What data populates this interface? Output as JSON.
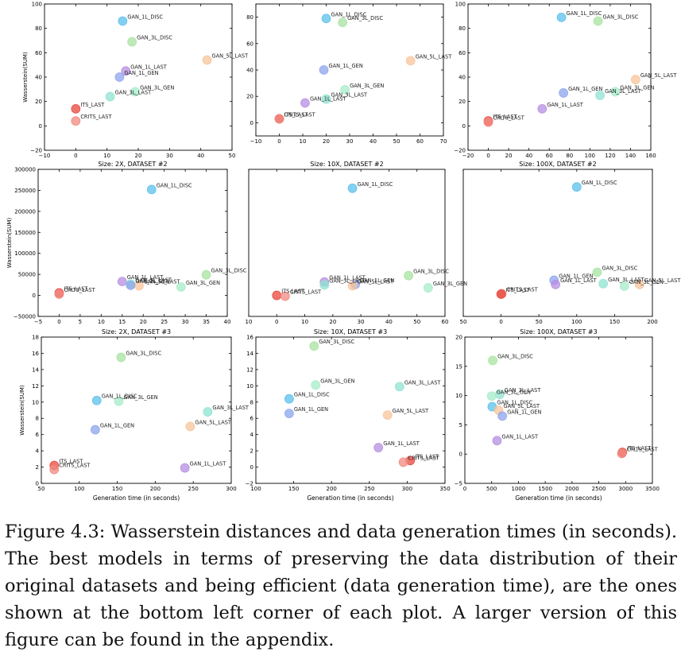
{
  "caption": "Figure 4.3: Wasserstein distances and data generation times (in seconds). The best models in terms of preserving the data distribution of their original datasets and being efficient (data generation time), are the ones shown at the bottom left corner of each plot. A larger version of this figure can be found in the appendix.",
  "colors": {
    "ITS_LAST": "#e8453c",
    "CRITS_LAST": "#f08a80",
    "GAN_1L_DISC": "#5bc0eb",
    "GAN_3L_DISC": "#a7e3a0",
    "GAN_1L_LAST": "#b58ee0",
    "GAN_3L_LAST": "#8fe3d1",
    "GAN_1L_GEN": "#8ea4ee",
    "GAN_3L_GEN": "#a5ecc9",
    "GAN_5L_LAST": "#f7c49a",
    "CRITS LAST": "#f08a80",
    "ITS LAST": "#e8453c"
  },
  "chart_data": [
    {
      "type": "scatter",
      "title": "",
      "xlabel": "",
      "ylabel": "Wasserstein(SUM)",
      "xlim": [
        -10,
        50
      ],
      "ylim": [
        -20,
        100
      ],
      "xticks": [
        "−10",
        "0",
        "10",
        "20",
        "30",
        "40",
        "50"
      ],
      "yticks": [
        "−20",
        "0",
        "20",
        "40",
        "60",
        "80",
        "100"
      ],
      "points": [
        {
          "label": "GAN_1L_DISC",
          "x": 15,
          "y": 86
        },
        {
          "label": "GAN_3L_DISC",
          "x": 18,
          "y": 69
        },
        {
          "label": "GAN_5L_LAST",
          "x": 42,
          "y": 54
        },
        {
          "label": "GAN_1L_LAST",
          "x": 16,
          "y": 45
        },
        {
          "label": "GAN_1L_GEN",
          "x": 14,
          "y": 40
        },
        {
          "label": "GAN_3L_GEN",
          "x": 19,
          "y": 28
        },
        {
          "label": "GAN_3L_LAST",
          "x": 11,
          "y": 24
        },
        {
          "label": "ITS_LAST",
          "x": 0,
          "y": 14
        },
        {
          "label": "CRITS_LAST",
          "x": 0,
          "y": 4
        }
      ]
    },
    {
      "type": "scatter",
      "title": "",
      "xlabel": "",
      "ylabel": "",
      "xlim": [
        -10,
        70
      ],
      "ylim": [
        -10,
        90
      ],
      "xticks": [
        "−10",
        "0",
        "10",
        "20",
        "30",
        "40",
        "50",
        "60",
        "70"
      ],
      "yticks": [
        "0",
        "20",
        "40",
        "60",
        "80"
      ],
      "points": [
        {
          "label": "GAN_1L_DISC",
          "x": 20,
          "y": 79
        },
        {
          "label": "GAN_3L_DISC",
          "x": 27,
          "y": 76
        },
        {
          "label": "GAN_5L_LAST",
          "x": 56,
          "y": 47
        },
        {
          "label": "GAN_1L_GEN",
          "x": 19,
          "y": 40
        },
        {
          "label": "GAN_3L_GEN",
          "x": 28,
          "y": 25
        },
        {
          "label": "GAN_3L_LAST",
          "x": 20,
          "y": 18
        },
        {
          "label": "GAN_1L_LAST",
          "x": 11,
          "y": 15
        },
        {
          "label": "ITS_LAST",
          "x": 0,
          "y": 3
        },
        {
          "label": "CRITS_LAST",
          "x": 0,
          "y": 3
        }
      ]
    },
    {
      "type": "scatter",
      "title": "",
      "xlabel": "",
      "ylabel": "",
      "xlim": [
        -20,
        160
      ],
      "ylim": [
        -20,
        100
      ],
      "xticks": [
        "−20",
        "0",
        "20",
        "40",
        "60",
        "80",
        "100",
        "120",
        "140",
        "160"
      ],
      "yticks": [
        "−20",
        "0",
        "20",
        "40",
        "60",
        "80",
        "100"
      ],
      "points": [
        {
          "label": "GAN_1L_DISC",
          "x": 72,
          "y": 89
        },
        {
          "label": "GAN_3L_DISC",
          "x": 108,
          "y": 86
        },
        {
          "label": "GAN_5L_LAST",
          "x": 145,
          "y": 38
        },
        {
          "label": "GAN_1L_GEN",
          "x": 74,
          "y": 27
        },
        {
          "label": "GAN_3L_GEN",
          "x": 125,
          "y": 28
        },
        {
          "label": "GAN_3L_LAST",
          "x": 110,
          "y": 25
        },
        {
          "label": "GAN_1L_LAST",
          "x": 53,
          "y": 14
        },
        {
          "label": "ITS_LAST",
          "x": 0,
          "y": 4
        },
        {
          "label": "CRITS_LAST",
          "x": 0,
          "y": 3
        }
      ]
    },
    {
      "type": "scatter",
      "title": "Size: 2X, DATASET #2",
      "xlabel": "",
      "ylabel": "Wasserstein(SUM)",
      "xlim": [
        -5,
        40
      ],
      "ylim": [
        -50000,
        300000
      ],
      "xticks": [
        "−5",
        "0",
        "5",
        "10",
        "15",
        "20",
        "25",
        "30",
        "35",
        "40"
      ],
      "yticks": [
        "−50000",
        "0",
        "50000",
        "100000",
        "150000",
        "200000",
        "250000",
        "300000"
      ],
      "points": [
        {
          "label": "GAN_1L_DISC",
          "x": 22,
          "y": 252000
        },
        {
          "label": "GAN_3L_DISC",
          "x": 35,
          "y": 49000
        },
        {
          "label": "GAN_1L_LAST",
          "x": 15,
          "y": 33000
        },
        {
          "label": "GAN_3L_LAST",
          "x": 17,
          "y": 27000
        },
        {
          "label": "GAN_5L_LAST",
          "x": 19,
          "y": 23000
        },
        {
          "label": "GAN_1L_GEN",
          "x": 17,
          "y": 24000
        },
        {
          "label": "GAN_3L_GEN",
          "x": 29,
          "y": 20000
        },
        {
          "label": "ITS_LAST",
          "x": 0,
          "y": 6000
        },
        {
          "label": "CRITS_LAST",
          "x": 0,
          "y": 3000
        }
      ]
    },
    {
      "type": "scatter",
      "title": "Size: 10X, DATASET #2",
      "xlabel": "",
      "ylabel": "",
      "xlim": [
        -10,
        60
      ],
      "ylim": [
        -50000,
        300000
      ],
      "xticks": [
        "10",
        "0",
        "10",
        "20",
        "30",
        "40",
        "50",
        "60"
      ],
      "yticks": [],
      "points": [
        {
          "label": "GAN_1L_DISC",
          "x": 27,
          "y": 255000
        },
        {
          "label": "GAN_3L_DISC",
          "x": 47,
          "y": 47000
        },
        {
          "label": "GAN_1L_LAST",
          "x": 17,
          "y": 32000
        },
        {
          "label": "GAN_1L_GEN",
          "x": 28,
          "y": 26000
        },
        {
          "label": "GAN_3L_LAST",
          "x": 17,
          "y": 25000
        },
        {
          "label": "GAN_5L_LAST",
          "x": 27,
          "y": 23000
        },
        {
          "label": "GAN_3L_GEN",
          "x": 54,
          "y": 18000
        },
        {
          "label": "ITS LAST",
          "x": 0,
          "y": 0
        },
        {
          "label": "CRITS_LAST",
          "x": 3,
          "y": -2000
        }
      ]
    },
    {
      "type": "scatter",
      "title": "Size: 100X, DATASET #2",
      "xlabel": "",
      "ylabel": "",
      "xlim": [
        -50,
        200
      ],
      "ylim": [
        -50000,
        300000
      ],
      "xticks": [
        "50",
        "0",
        "50",
        "100",
        "150",
        "200"
      ],
      "yticks": [],
      "points": [
        {
          "label": "GAN_1L_DISC",
          "x": 100,
          "y": 258000
        },
        {
          "label": "GAN_3L_DISC",
          "x": 127,
          "y": 55000
        },
        {
          "label": "GAN_1L_GEN",
          "x": 70,
          "y": 36000
        },
        {
          "label": "GAN_3L_LAST",
          "x": 135,
          "y": 28000
        },
        {
          "label": "GAN_1L_LAST",
          "x": 72,
          "y": 26000
        },
        {
          "label": "GAN_5L_LAST",
          "x": 183,
          "y": 26000
        },
        {
          "label": "GAN_3L_GEN",
          "x": 163,
          "y": 22000
        },
        {
          "label": "CRITS_LAST",
          "x": 1,
          "y": 4000
        },
        {
          "label": "ITS_LAST",
          "x": 0,
          "y": 3000
        }
      ]
    },
    {
      "type": "scatter",
      "title": "Size: 2X, DATASET #3",
      "xlabel": "Generation time (in seconds)",
      "ylabel": "Wasserstein(SUM)",
      "xlim": [
        50,
        300
      ],
      "ylim": [
        0,
        18
      ],
      "xticks": [
        "50",
        "100",
        "150",
        "200",
        "250",
        "300"
      ],
      "yticks": [
        "0",
        "2",
        "4",
        "6",
        "8",
        "10",
        "12",
        "14",
        "16",
        "18"
      ],
      "points": [
        {
          "label": "GAN_3L_DISC",
          "x": 155,
          "y": 15.5
        },
        {
          "label": "GAN_1L_DISC",
          "x": 123,
          "y": 10.2
        },
        {
          "label": "GAN_3L_GEN",
          "x": 152,
          "y": 10.1
        },
        {
          "label": "GAN_3L_LAST",
          "x": 269,
          "y": 8.8
        },
        {
          "label": "GAN_5L_LAST",
          "x": 246,
          "y": 7.0
        },
        {
          "label": "GAN_1L_GEN",
          "x": 121,
          "y": 6.6
        },
        {
          "label": "GAN_1L_LAST",
          "x": 239,
          "y": 1.9
        },
        {
          "label": "ITS_LAST",
          "x": 67,
          "y": 2.2
        },
        {
          "label": "CRITS_LAST",
          "x": 67,
          "y": 1.7
        }
      ]
    },
    {
      "type": "scatter",
      "title": "Size: 10X, DATASET #3",
      "xlabel": "Generation time (in seconds)",
      "ylabel": "",
      "xlim": [
        100,
        350
      ],
      "ylim": [
        -2,
        16
      ],
      "xticks": [
        "100",
        "150",
        "200",
        "250",
        "300",
        "350"
      ],
      "yticks": [
        "−2",
        "0",
        "2",
        "4",
        "6",
        "8",
        "10",
        "12",
        "14",
        "16"
      ],
      "points": [
        {
          "label": "GAN_3L_DISC",
          "x": 177,
          "y": 14.9
        },
        {
          "label": "GAN_3L_GEN",
          "x": 179,
          "y": 10.1
        },
        {
          "label": "GAN_3L_LAST",
          "x": 290,
          "y": 9.9
        },
        {
          "label": "GAN_1L_DISC",
          "x": 144,
          "y": 8.4
        },
        {
          "label": "GAN_5L_LAST",
          "x": 274,
          "y": 6.4
        },
        {
          "label": "GAN_1L_GEN",
          "x": 144,
          "y": 6.6
        },
        {
          "label": "GAN_1L_LAST",
          "x": 262,
          "y": 2.4
        },
        {
          "label": "ITS_LAST",
          "x": 304,
          "y": 0.8
        },
        {
          "label": "CRITS_LAST",
          "x": 295,
          "y": 0.6
        }
      ]
    },
    {
      "type": "scatter",
      "title": "Size: 100X, DATASET #3",
      "xlabel": "Generation time (in seconds)",
      "ylabel": "",
      "xlim": [
        0,
        3500
      ],
      "ylim": [
        -5,
        20
      ],
      "xticks": [
        "0",
        "500",
        "1000",
        "1500",
        "2000",
        "2500",
        "3000",
        "3500"
      ],
      "yticks": [
        "−5",
        "0",
        "5",
        "10",
        "15",
        "20"
      ],
      "points": [
        {
          "label": "GAN_3L_DISC",
          "x": 520,
          "y": 16.0
        },
        {
          "label": "GAN_3L_LAST",
          "x": 650,
          "y": 10.2
        },
        {
          "label": "GAN_3L_GEN",
          "x": 500,
          "y": 9.9
        },
        {
          "label": "GAN_1L_DISC",
          "x": 510,
          "y": 8.1
        },
        {
          "label": "GAN_5L_LAST",
          "x": 630,
          "y": 7.5
        },
        {
          "label": "GAN_1L_GEN",
          "x": 700,
          "y": 6.5
        },
        {
          "label": "GAN_1L_LAST",
          "x": 600,
          "y": 2.3
        },
        {
          "label": "ITS_LAST",
          "x": 2940,
          "y": 0.3
        },
        {
          "label": "CRITS_LAST",
          "x": 2930,
          "y": 0.1
        }
      ]
    }
  ]
}
